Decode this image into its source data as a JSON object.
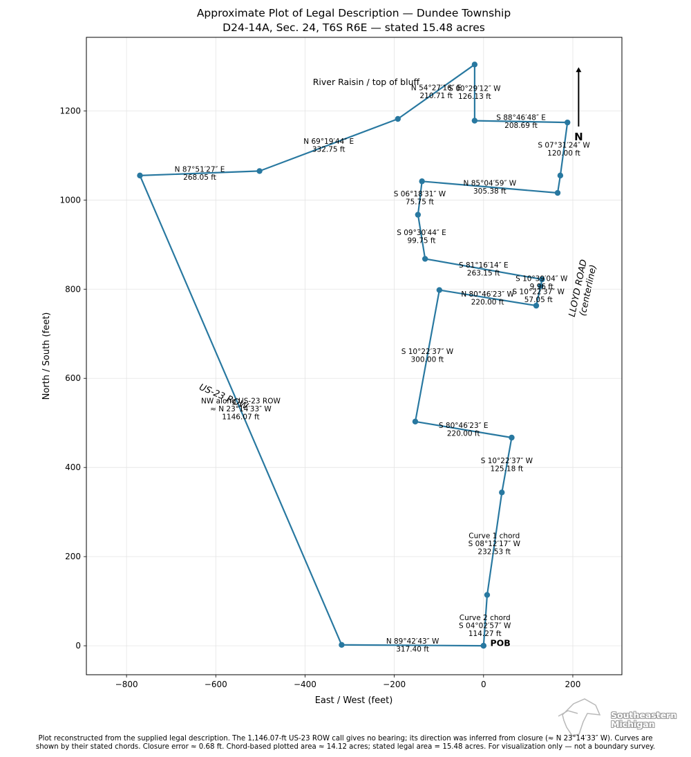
{
  "chart_data": {
    "type": "line",
    "title": "Approximate Plot of Legal Description — Dundee Township",
    "subtitle": "D24-14A, Sec. 24, T6S R6E — stated 15.48 acres",
    "xlabel": "East / West (feet)",
    "ylabel": "North / South (feet)",
    "xlim": [
      -890,
      310
    ],
    "ylim": [
      -65,
      1365
    ],
    "x_ticks": [
      -800,
      -600,
      -400,
      -200,
      0,
      200
    ],
    "y_ticks": [
      0,
      200,
      400,
      600,
      800,
      1000,
      1200
    ],
    "x_tick_labels": [
      "−800",
      "−600",
      "−400",
      "−200",
      "0",
      "200"
    ],
    "y_tick_labels": [
      "0",
      "200",
      "400",
      "600",
      "800",
      "1000",
      "1200"
    ],
    "grid": true,
    "series_color": "#2878a0",
    "points": [
      {
        "x": 0,
        "y": 0
      },
      {
        "x": 8,
        "y": 114
      },
      {
        "x": 41,
        "y": 344
      },
      {
        "x": 63,
        "y": 467
      },
      {
        "x": -153,
        "y": 503
      },
      {
        "x": -99,
        "y": 798
      },
      {
        "x": 118,
        "y": 763
      },
      {
        "x": 128,
        "y": 807
      },
      {
        "x": 131,
        "y": 822
      },
      {
        "x": -131,
        "y": 868
      },
      {
        "x": -147,
        "y": 967
      },
      {
        "x": -138,
        "y": 1042
      },
      {
        "x": 166,
        "y": 1016
      },
      {
        "x": 172,
        "y": 1055
      },
      {
        "x": 188,
        "y": 1174
      },
      {
        "x": -20,
        "y": 1178
      },
      {
        "x": -20,
        "y": 1304
      },
      {
        "x": -192,
        "y": 1182
      },
      {
        "x": -502,
        "y": 1065
      },
      {
        "x": -770,
        "y": 1055
      },
      {
        "x": -318,
        "y": 2
      },
      {
        "x": 0,
        "y": 0
      }
    ],
    "annotations": [
      {
        "id": "ann-curve2",
        "lines": [
          "Curve 2 chord",
          "S 04°02′57″ W",
          "114.27 ft"
        ],
        "x": 3,
        "y": 45
      },
      {
        "id": "ann-curve1",
        "lines": [
          "Curve 1 chord",
          "S 08°12′17″ W",
          "232.53 ft"
        ],
        "x": 24,
        "y": 229
      },
      {
        "id": "ann-s10-125",
        "lines": [
          "S 10°22′37″ W",
          "125.18 ft"
        ],
        "x": 52,
        "y": 406
      },
      {
        "id": "ann-s80-220-lower",
        "lines": [
          "S 80°46′23″ E",
          "220.00 ft"
        ],
        "x": -45,
        "y": 485
      },
      {
        "id": "ann-s10-300",
        "lines": [
          "S 10°22′37″ W",
          "300.00 ft"
        ],
        "x": -126,
        "y": 651
      },
      {
        "id": "ann-n80-220",
        "lines": [
          "N 80°46′23″ W",
          "220.00 ft"
        ],
        "x": 9,
        "y": 780
      },
      {
        "id": "ann-s10-57",
        "lines": [
          "S 10°22′37″ W",
          "57.05 ft"
        ],
        "x": 123,
        "y": 785
      },
      {
        "id": "ann-s10-996",
        "lines": [
          "S 10°39′04″ W",
          "9.96 ft"
        ],
        "x": 130,
        "y": 815
      },
      {
        "id": "ann-s81-263",
        "lines": [
          "S 81°16′14″ E",
          "263.15 ft"
        ],
        "x": 0,
        "y": 845
      },
      {
        "id": "ann-s09-99",
        "lines": [
          "S 09°30′44″ E",
          "99.75 ft"
        ],
        "x": -139,
        "y": 918
      },
      {
        "id": "ann-s06-75",
        "lines": [
          "S 06°18′31″ W",
          "75.75 ft"
        ],
        "x": -143,
        "y": 1005
      },
      {
        "id": "ann-n85-305",
        "lines": [
          "N 85°04′59″ W",
          "305.38 ft"
        ],
        "x": 14,
        "y": 1029
      },
      {
        "id": "ann-s07-120",
        "lines": [
          "S 07°31′24″ W",
          "120.00 ft"
        ],
        "x": 180,
        "y": 1114
      },
      {
        "id": "ann-s88-208",
        "lines": [
          "S 88°46′48″ E",
          "208.69 ft"
        ],
        "x": 84,
        "y": 1176
      },
      {
        "id": "ann-n69-332",
        "lines": [
          "N 69°19′44″ E",
          "332.75 ft"
        ],
        "x": -347,
        "y": 1123
      },
      {
        "id": "ann-n87-268",
        "lines": [
          "N 87°51′27″ E",
          "268.05 ft"
        ],
        "x": -636,
        "y": 1060
      },
      {
        "id": "ann-n54-210",
        "lines": [
          "N 54°27′16″ E",
          "210.71 ft"
        ],
        "x": -106,
        "y": 1243
      },
      {
        "id": "ann-s00-126",
        "lines": [
          "S 00°29′12″ W",
          "126.13 ft"
        ],
        "x": -20,
        "y": 1241
      },
      {
        "id": "ann-n89-317",
        "lines": [
          "N 89°42′43″ W",
          "317.40 ft"
        ],
        "x": -159,
        "y": 1
      },
      {
        "id": "ann-us23-row",
        "lines": [
          "NW along US-23 ROW",
          "≈ N 23°14′33″ W",
          "1146.07 ft"
        ],
        "x": -544,
        "y": 531
      }
    ],
    "labels": {
      "river": "River Raisin / top of bluff",
      "pob": "POB",
      "north": "N",
      "road_name": "LLOYD ROAD",
      "road_sub": "(centerline)",
      "us23_rotated": "US-23 ROW"
    }
  },
  "footnote": {
    "line1": "Plot reconstructed from the supplied legal description. The 1,146.07-ft US-23 ROW call gives no bearing; its direction was inferred from closure (≈ N 23°14′33″ W). Curves are",
    "line2": "shown by their stated chords. Closure error ≈ 0.68 ft. Chord-based plotted area ≈ 14.12 acres; stated legal area = 15.48 acres. For visualization only — not a boundary survey."
  },
  "logo": {
    "line1": "Southeastern",
    "line2": "Michigan"
  }
}
